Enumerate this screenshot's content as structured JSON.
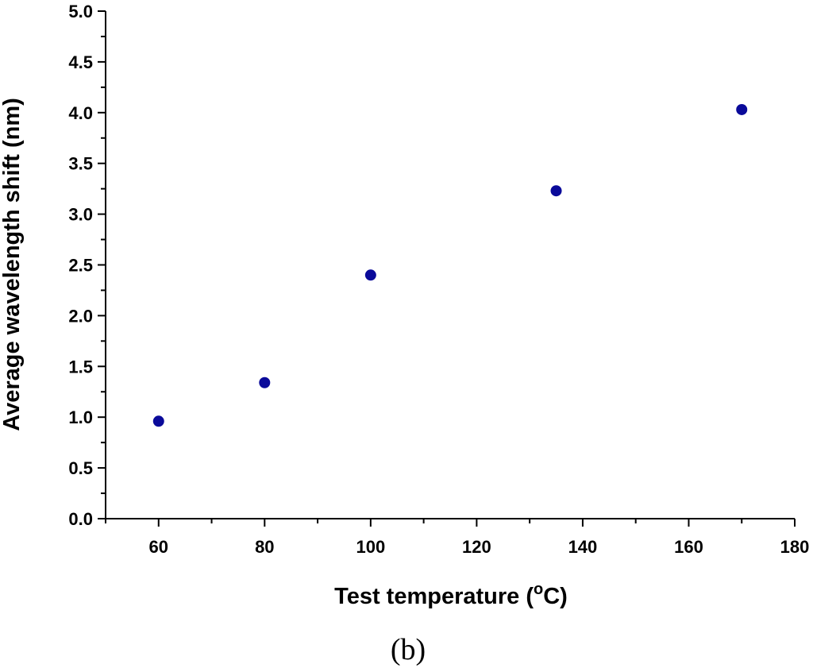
{
  "chart_data": {
    "type": "scatter",
    "xlabel_main": "Test temperature (",
    "xlabel_sup": "o",
    "xlabel_end": "C)",
    "ylabel": "Average wavelength shift (nm)",
    "panel_label": "(b)",
    "xlim": [
      50,
      180
    ],
    "ylim": [
      0,
      5.0
    ],
    "x_ticks": [
      60,
      80,
      100,
      120,
      140,
      160,
      180
    ],
    "y_ticks": [
      "0.0",
      "0.5",
      "1.0",
      "1.5",
      "2.0",
      "2.5",
      "3.0",
      "3.5",
      "4.0",
      "4.5",
      "5.0"
    ],
    "points": [
      {
        "x": 60,
        "y": 0.96
      },
      {
        "x": 80,
        "y": 1.34
      },
      {
        "x": 100,
        "y": 2.4
      },
      {
        "x": 135,
        "y": 3.23
      },
      {
        "x": 170,
        "y": 4.03
      }
    ],
    "marker_color": "#0a0a9a",
    "grid": false,
    "legend": "none"
  }
}
